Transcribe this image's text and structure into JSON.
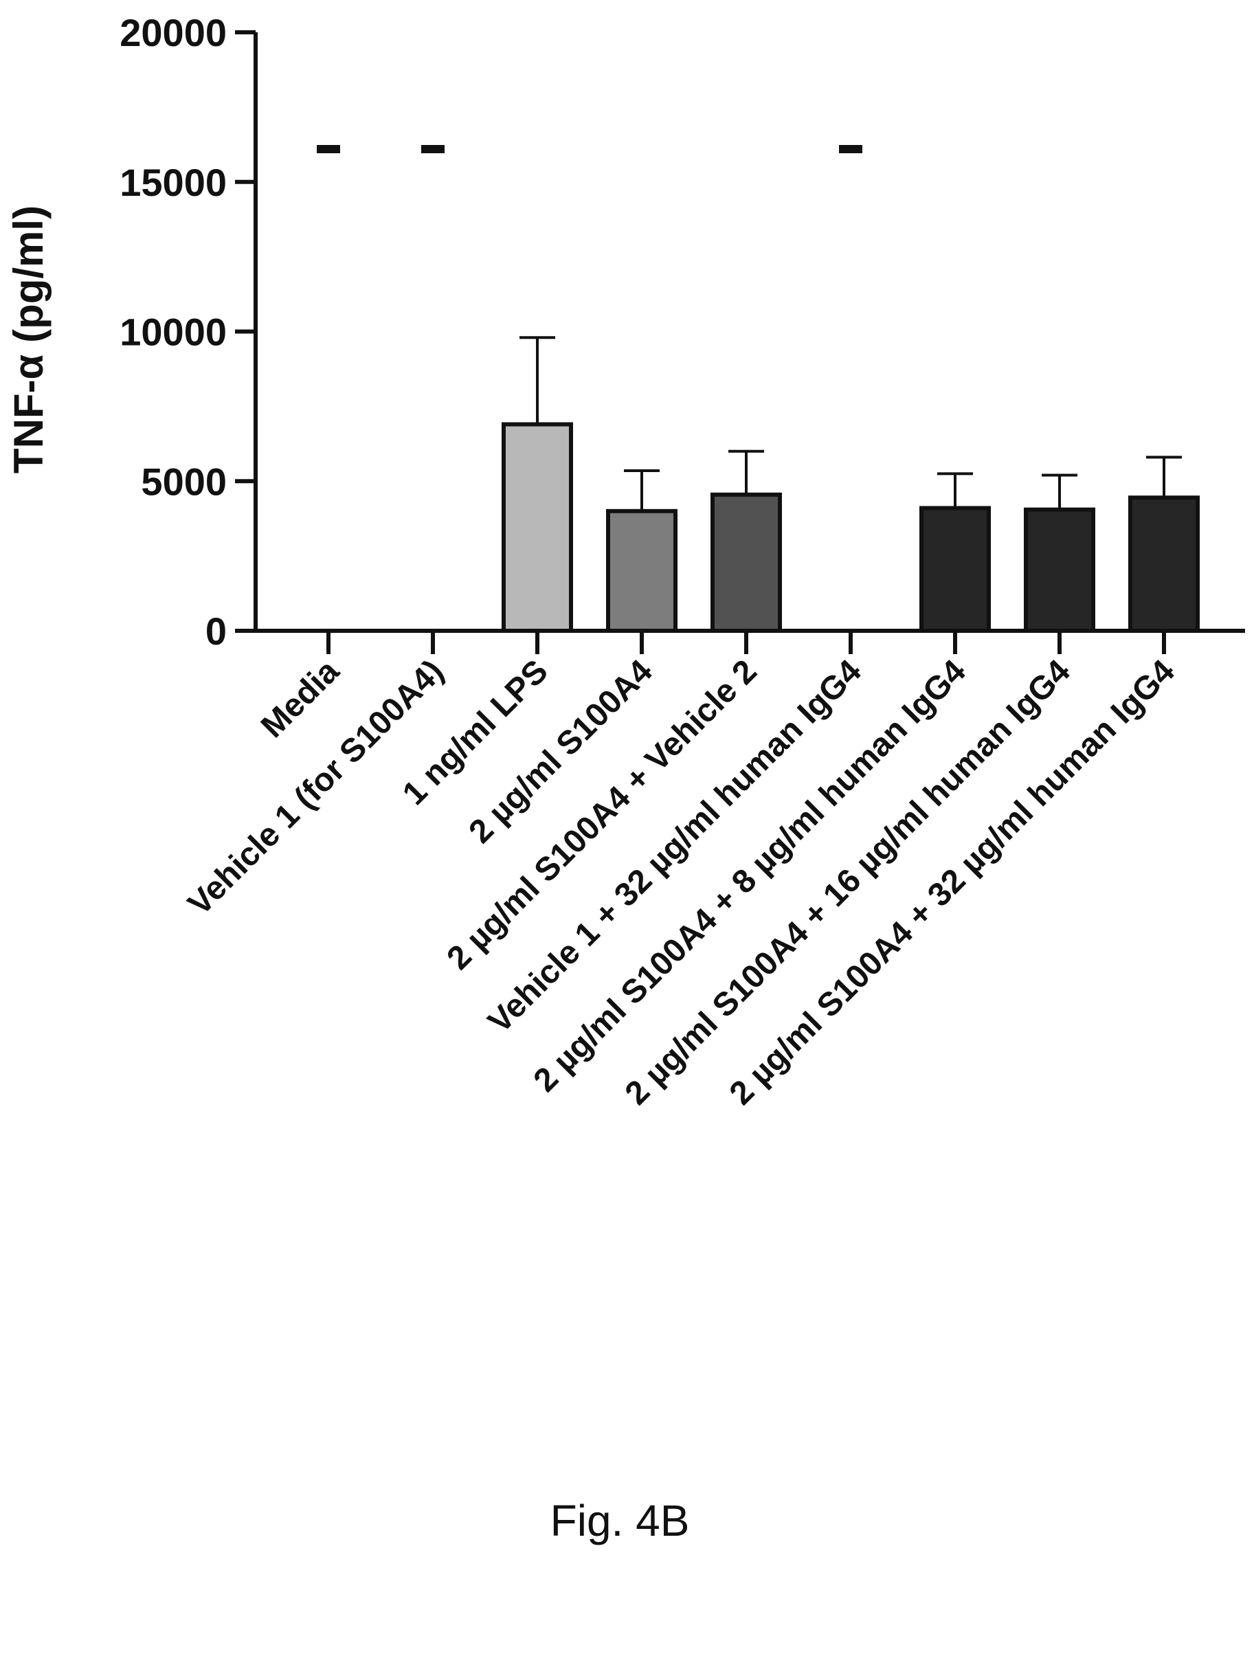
{
  "chart_data": {
    "type": "bar",
    "ylabel": "TNF-α (pg/ml)",
    "xlabel": "",
    "ylim": [
      0,
      20000
    ],
    "yticks": [
      0,
      5000,
      10000,
      15000,
      20000
    ],
    "ytick_labels": [
      "0",
      "5000",
      "10000",
      "15000",
      "20000"
    ],
    "grid": false,
    "categories": [
      "Media",
      "Vehicle 1 (for S100A4)",
      "1 ng/ml LPS",
      "2 µg/ml S100A4",
      "2 µg/ml S100A4 + Vehicle 2",
      "Vehicle 1 + 32 µg/ml human IgG4",
      "2 µg/ml S100A4 + 8 µg/ml human IgG4",
      "2 µg/ml S100A4 + 16 µg/ml human IgG4",
      "2 µg/ml S100A4 + 32 µg/ml human IgG4"
    ],
    "values": [
      0,
      0,
      6900,
      4000,
      4550,
      0,
      4100,
      4050,
      4450
    ],
    "error_upper": [
      null,
      null,
      9800,
      5350,
      6000,
      null,
      5250,
      5200,
      5800
    ],
    "below_detection_marker": [
      true,
      true,
      false,
      false,
      false,
      true,
      false,
      false,
      false
    ],
    "bar_colors": [
      "#ffffff",
      "#ffffff",
      "#b8b8b8",
      "#7d7d7d",
      "#525252",
      "#ffffff",
      "#262626",
      "#262626",
      "#262626"
    ]
  },
  "caption": "Fig. 4B"
}
